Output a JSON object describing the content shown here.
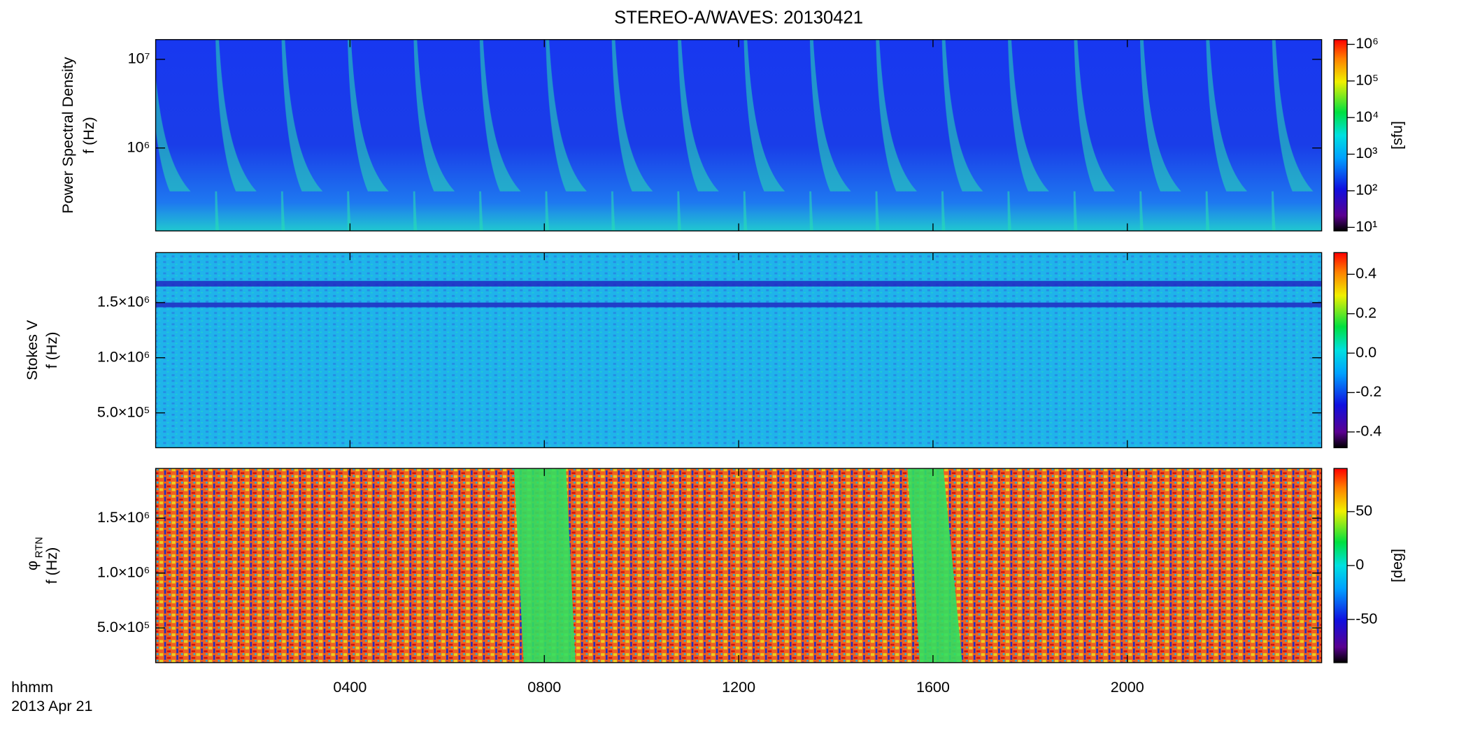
{
  "chart_data": [
    {
      "type": "heatmap",
      "title": "STEREO-A/WAVES: 20130421",
      "quantity": "Power Spectral Density",
      "ylabel": "f (Hz)",
      "ylim": [
        116000,
        16700000
      ],
      "ylog": true,
      "yticks": [
        {
          "value": 1000000,
          "label": "10⁶"
        },
        {
          "value": 10000000,
          "label": "10⁷"
        }
      ],
      "colormap": "rainbow",
      "clim": [
        8,
        1350000
      ],
      "clog": true,
      "cticks": [
        {
          "value": 10,
          "label": "10¹"
        },
        {
          "value": 100,
          "label": "10²"
        },
        {
          "value": 1000,
          "label": "10³"
        },
        {
          "value": 10000,
          "label": "10⁴"
        },
        {
          "value": 100000,
          "label": "10⁵"
        },
        {
          "value": 1000000,
          "label": "10⁶"
        }
      ],
      "clabel": "[sfu]"
    },
    {
      "type": "heatmap",
      "quantity": "Stokes V",
      "ylabel": "f (Hz)",
      "ylim": [
        184000,
        1953000
      ],
      "ylog": false,
      "yticks": [
        {
          "value": 500000,
          "label": "5.0×10⁵"
        },
        {
          "value": 1000000,
          "label": "1.0×10⁶"
        },
        {
          "value": 1500000,
          "label": "1.5×10⁶"
        }
      ],
      "colormap": "rainbow",
      "clim": [
        -0.48,
        0.51
      ],
      "clog": false,
      "cticks": [
        -0.4,
        -0.2,
        {
          "value": 0,
          "label": "0.0"
        },
        0.2,
        0.4
      ]
    },
    {
      "type": "heatmap",
      "quantity": "φ",
      "quantity_sub": "RTN",
      "ylabel": "f (Hz)",
      "ylim": [
        184000,
        1953000
      ],
      "ylog": false,
      "yticks": [
        {
          "value": 500000,
          "label": "5.0×10⁵"
        },
        {
          "value": 1000000,
          "label": "1.0×10⁶"
        },
        {
          "value": 1500000,
          "label": "1.5×10⁶"
        }
      ],
      "colormap": "rainbow",
      "clim": [
        -90,
        90
      ],
      "clog": false,
      "cticks": [
        -50,
        0,
        50
      ],
      "clabel": "[deg]",
      "xlim": [
        0,
        24
      ],
      "xticks": [
        {
          "value": 4,
          "label": "0400"
        },
        {
          "value": 8,
          "label": "0800"
        },
        {
          "value": 12,
          "label": "1200"
        },
        {
          "value": 16,
          "label": "1600"
        },
        {
          "value": 20,
          "label": "2000"
        }
      ],
      "xlabel": [
        "hhmm",
        "2013 Apr 21"
      ]
    }
  ]
}
